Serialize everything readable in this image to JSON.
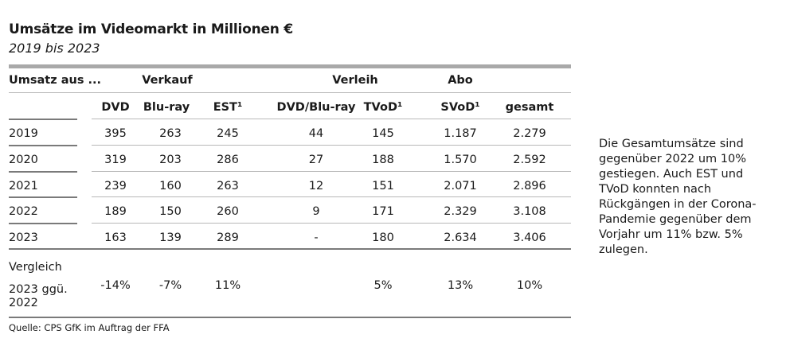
{
  "title": "Umsätze im Videomarkt in Millionen €",
  "subtitle": "2019 bis 2023",
  "table": {
    "group_headers": {
      "umsatz_aus": "Umsatz aus ...",
      "verkauf": "Verkauf",
      "verleih": "Verleih",
      "abo": "Abo"
    },
    "columns": [
      "DVD",
      "Blu-ray",
      "EST¹",
      "DVD/Blu-ray",
      "TVoD¹",
      "SVoD¹",
      "gesamt"
    ],
    "rows": [
      {
        "year": "2019",
        "values": [
          "395",
          "263",
          "245",
          "44",
          "145",
          "1.187",
          "2.279"
        ]
      },
      {
        "year": "2020",
        "values": [
          "319",
          "203",
          "286",
          "27",
          "188",
          "1.570",
          "2.592"
        ]
      },
      {
        "year": "2021",
        "values": [
          "239",
          "160",
          "263",
          "12",
          "151",
          "2.071",
          "2.896"
        ]
      },
      {
        "year": "2022",
        "values": [
          "189",
          "150",
          "260",
          "9",
          "171",
          "2.329",
          "3.108"
        ]
      },
      {
        "year": "2023",
        "values": [
          "163",
          "139",
          "289",
          "-",
          "180",
          "2.634",
          "3.406"
        ]
      }
    ],
    "comparison": {
      "label_line1": "Vergleich",
      "label_line2": "2023 ggü.",
      "label_line3": "2022",
      "values": [
        "-14%",
        "-7%",
        "11%",
        "",
        "5%",
        "13%",
        "10%"
      ]
    }
  },
  "side_note": "Die Gesamtumsätze sind gegenüber 2022 um 10% gestiegen. Auch EST und TVoD konnten nach Rückgängen in der Corona-Pandemie gegenüber dem Vorjahr um 11% bzw. 5% zulegen.",
  "source": "Quelle: CPS GfK im Auftrag der FFA"
}
